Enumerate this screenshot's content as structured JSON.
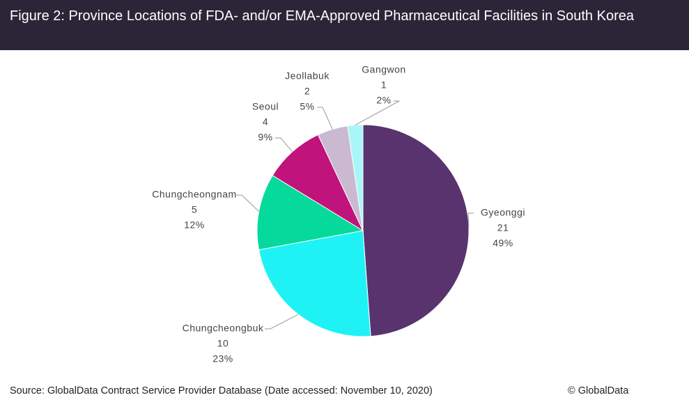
{
  "title": "Figure 2: Province Locations of FDA- and/or EMA-Approved Pharmaceutical Facilities in South Korea",
  "chart_data": {
    "type": "pie",
    "categories": [
      "Gyeonggi",
      "Chungcheongbuk",
      "Chungcheongnam",
      "Seoul",
      "Jeollabuk",
      "Gangwon"
    ],
    "values": [
      21,
      10,
      5,
      4,
      2,
      1
    ],
    "percent_labels": [
      "49%",
      "23%",
      "12%",
      "9%",
      "5%",
      "2%"
    ],
    "colors": [
      "#58336e",
      "#1ff2f5",
      "#05d99b",
      "#c0137b",
      "#cbb9d2",
      "#a9f6f8"
    ]
  },
  "source": "Source: GlobalData Contract Service Provider Database (Date accessed: November 10, 2020)",
  "copyright": "© GlobalData"
}
